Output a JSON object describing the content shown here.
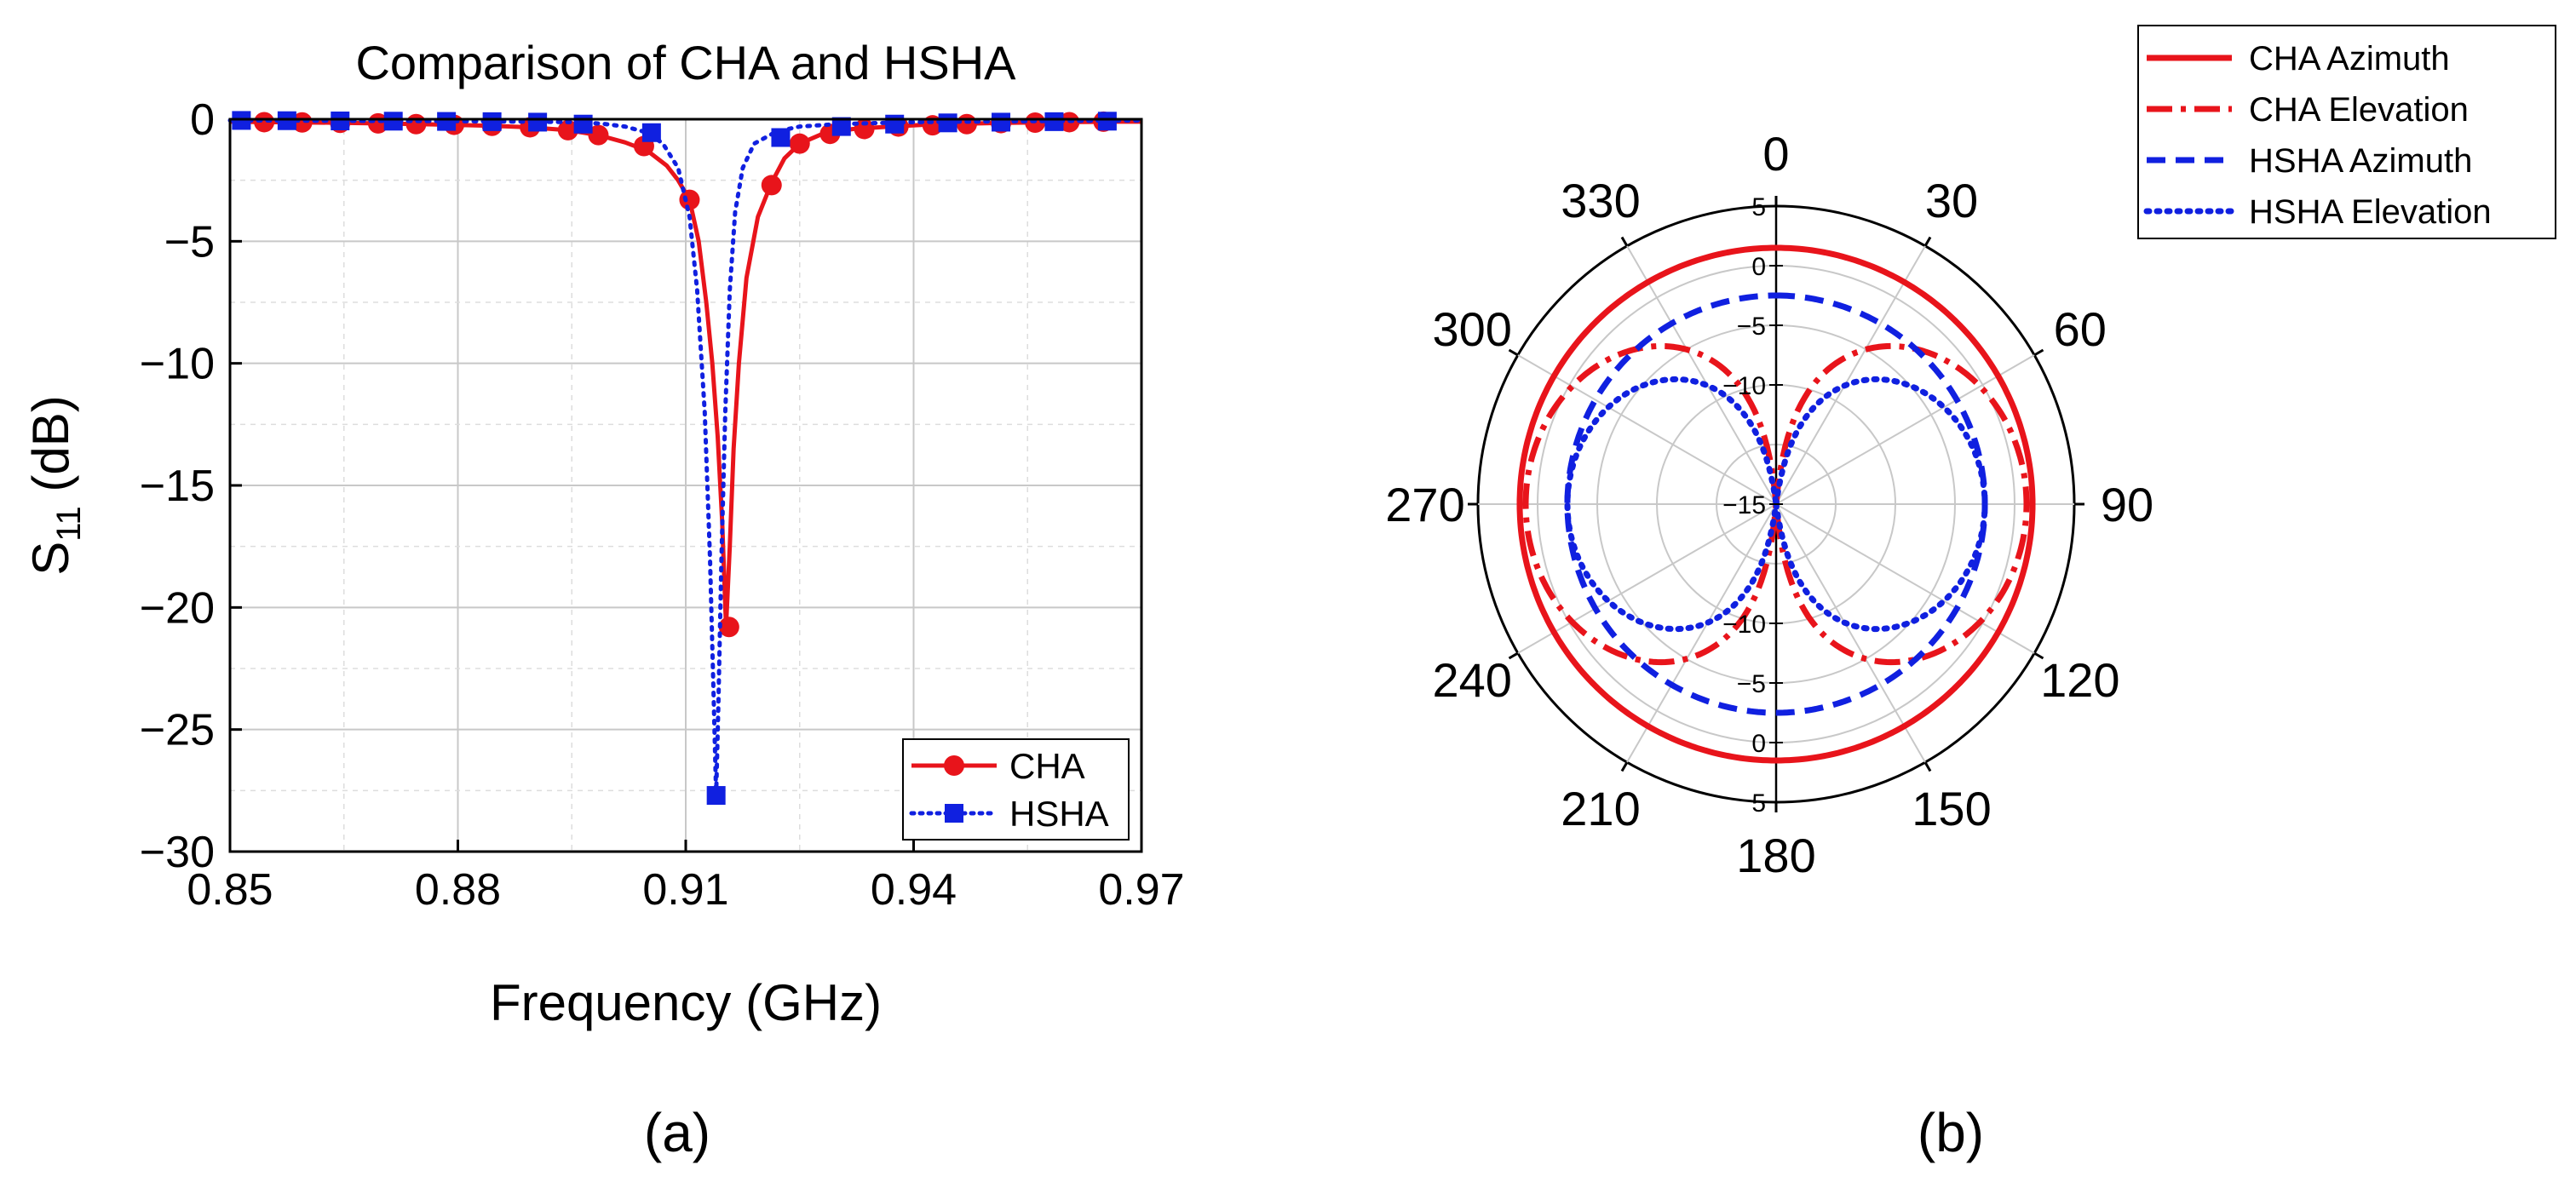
{
  "colors": {
    "red": "#e8141b",
    "blue": "#1020e0",
    "grid": "#c8c8c8",
    "axis": "#000000"
  },
  "panel_labels": [
    "(a)",
    "(b)"
  ],
  "chart_data": [
    {
      "type": "line",
      "title": "Comparison of CHA and HSHA",
      "xlabel": "Frequency (GHz)",
      "ylabel_main": "S",
      "ylabel_sub": "11",
      "ylabel_unit": " (dB)",
      "xlim": [
        0.85,
        0.97
      ],
      "ylim": [
        -30,
        0
      ],
      "xticks": [
        0.85,
        0.88,
        0.91,
        0.94,
        0.97
      ],
      "xtick_labels": [
        "0.85",
        "0.88",
        "0.91",
        "0.94",
        "0.97"
      ],
      "yticks": [
        0,
        -5,
        -10,
        -15,
        -20,
        -25,
        -30
      ],
      "ytick_labels": [
        "0",
        "−5",
        "−10",
        "−15",
        "−20",
        "−25",
        "−30"
      ],
      "grid": true,
      "legend_position": "bottom-right",
      "series": [
        {
          "name": "CHA",
          "color": "#e8141b",
          "line": "solid",
          "marker": "circle",
          "x": [
            0.85,
            0.8545,
            0.8595,
            0.8645,
            0.8695,
            0.8745,
            0.8795,
            0.8845,
            0.8895,
            0.8945,
            0.8985,
            0.902,
            0.905,
            0.9075,
            0.909,
            0.9105,
            0.9117,
            0.9127,
            0.9135,
            0.9142,
            0.9148,
            0.9153,
            0.9158,
            0.9163,
            0.917,
            0.918,
            0.9195,
            0.9213,
            0.923,
            0.925,
            0.928,
            0.932,
            0.937,
            0.942,
            0.947,
            0.952,
            0.957,
            0.962,
            0.967,
            0.97
          ],
          "y": [
            -0.1,
            -0.12,
            -0.13,
            -0.15,
            -0.17,
            -0.2,
            -0.23,
            -0.27,
            -0.33,
            -0.45,
            -0.65,
            -0.95,
            -1.3,
            -1.9,
            -2.5,
            -3.3,
            -5.0,
            -7.5,
            -10.0,
            -13.0,
            -16.5,
            -20.8,
            -17.5,
            -13.5,
            -10.0,
            -6.5,
            -4.0,
            -2.6,
            -1.6,
            -1.0,
            -0.6,
            -0.4,
            -0.3,
            -0.22,
            -0.18,
            -0.15,
            -0.13,
            -0.11,
            -0.1,
            -0.1
          ],
          "markers_x": [
            0.8545,
            0.8595,
            0.8645,
            0.8695,
            0.8745,
            0.8795,
            0.8845,
            0.8895,
            0.8945,
            0.8985,
            0.9045,
            0.9105,
            0.9157,
            0.9213,
            0.925,
            0.929,
            0.9335,
            0.938,
            0.9425,
            0.947,
            0.9515,
            0.956,
            0.9605,
            0.965
          ],
          "markers_y": [
            -0.12,
            -0.13,
            -0.15,
            -0.17,
            -0.2,
            -0.23,
            -0.27,
            -0.33,
            -0.45,
            -0.65,
            -1.1,
            -3.3,
            -20.8,
            -2.7,
            -1.0,
            -0.6,
            -0.4,
            -0.3,
            -0.25,
            -0.2,
            -0.16,
            -0.14,
            -0.12,
            -0.1
          ]
        },
        {
          "name": "HSHA",
          "color": "#1020e0",
          "line": "dotted",
          "marker": "square",
          "x": [
            0.85,
            0.86,
            0.87,
            0.88,
            0.89,
            0.895,
            0.899,
            0.902,
            0.905,
            0.907,
            0.909,
            0.9105,
            0.9115,
            0.9125,
            0.9132,
            0.9137,
            0.914,
            0.9143,
            0.9147,
            0.9152,
            0.9158,
            0.9165,
            0.9175,
            0.919,
            0.9205,
            0.922,
            0.925,
            0.93,
            0.94,
            0.95,
            0.96,
            0.97
          ],
          "y": [
            -0.05,
            -0.06,
            -0.07,
            -0.08,
            -0.1,
            -0.12,
            -0.18,
            -0.3,
            -0.55,
            -1.0,
            -2.0,
            -4.0,
            -7.0,
            -12.0,
            -18.0,
            -24.0,
            -27.7,
            -24.0,
            -18.0,
            -12.0,
            -7.0,
            -3.8,
            -2.0,
            -1.0,
            -0.75,
            -0.5,
            -0.3,
            -0.2,
            -0.12,
            -0.09,
            -0.07,
            -0.05
          ],
          "markers_x": [
            0.8515,
            0.8575,
            0.8645,
            0.8715,
            0.8785,
            0.8845,
            0.8905,
            0.8965,
            0.9055,
            0.914,
            0.9225,
            0.9305,
            0.9375,
            0.9445,
            0.9515,
            0.9585,
            0.9655
          ],
          "markers_y": [
            -0.05,
            -0.06,
            -0.07,
            -0.08,
            -0.09,
            -0.1,
            -0.12,
            -0.2,
            -0.55,
            -27.7,
            -0.75,
            -0.3,
            -0.2,
            -0.15,
            -0.12,
            -0.1,
            -0.08
          ]
        }
      ]
    },
    {
      "type": "polar",
      "rlim": [
        -20,
        5
      ],
      "r_rings": [
        -15,
        -10,
        -5,
        0,
        5
      ],
      "r_tick_labels": [
        "5",
        "0",
        "−5",
        "−10",
        "−15",
        "−10",
        "−5",
        "0",
        "5"
      ],
      "r_tick_values": [
        5,
        0,
        -5,
        -10,
        -15,
        -10,
        -5,
        0,
        5
      ],
      "angle_ticks": [
        0,
        30,
        60,
        90,
        120,
        150,
        180,
        210,
        240,
        270,
        300,
        330
      ],
      "angle_labels": [
        "0",
        "30",
        "60",
        "90",
        "120",
        "150",
        "180",
        "210",
        "240",
        "270",
        "300",
        "330"
      ],
      "legend_position": "top-right",
      "series": [
        {
          "name": "CHA Azimuth",
          "color": "#e8141b",
          "line": "solid",
          "pattern": "omni",
          "gain_dB": 1.5
        },
        {
          "name": "CHA Elevation",
          "color": "#e8141b",
          "line": "dashdot",
          "pattern": "dipole",
          "peak_dB": 1.0,
          "peak_angles": [
            90,
            270
          ]
        },
        {
          "name": "HSHA Azimuth",
          "color": "#1020e0",
          "line": "dashed",
          "pattern": "omni",
          "gain_dB": -2.5
        },
        {
          "name": "HSHA Elevation",
          "color": "#1020e0",
          "line": "dotted",
          "pattern": "dipole",
          "peak_dB": -2.5,
          "peak_angles": [
            90,
            270
          ]
        }
      ]
    }
  ]
}
